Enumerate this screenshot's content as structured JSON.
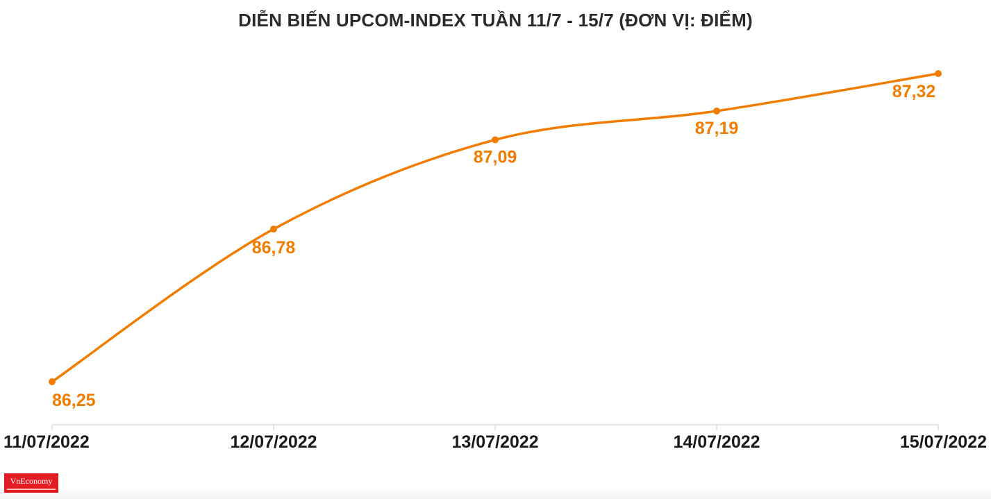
{
  "chart_data": {
    "type": "line",
    "title": "DIỄN BIẾN UPCOM-INDEX TUẦN 11/7 - 15/7 (ĐƠN VỊ: ĐIỂM)",
    "categories": [
      "11/07/2022",
      "12/07/2022",
      "13/07/2022",
      "14/07/2022",
      "15/07/2022"
    ],
    "series": [
      {
        "values": [
          86.25,
          86.78,
          87.09,
          87.19,
          87.32
        ],
        "labels": [
          "86,25",
          "86,78",
          "87,09",
          "87,19",
          "87,32"
        ]
      }
    ],
    "xlabel": "",
    "ylabel": "",
    "ylim": [
      86.25,
      87.32
    ],
    "grid": false,
    "legend": "none",
    "colors": {
      "line": "#f07d00",
      "label": "#f07d00",
      "axis": "#dcdcdc"
    }
  },
  "branding": {
    "logo_text": "VnEconomy"
  }
}
